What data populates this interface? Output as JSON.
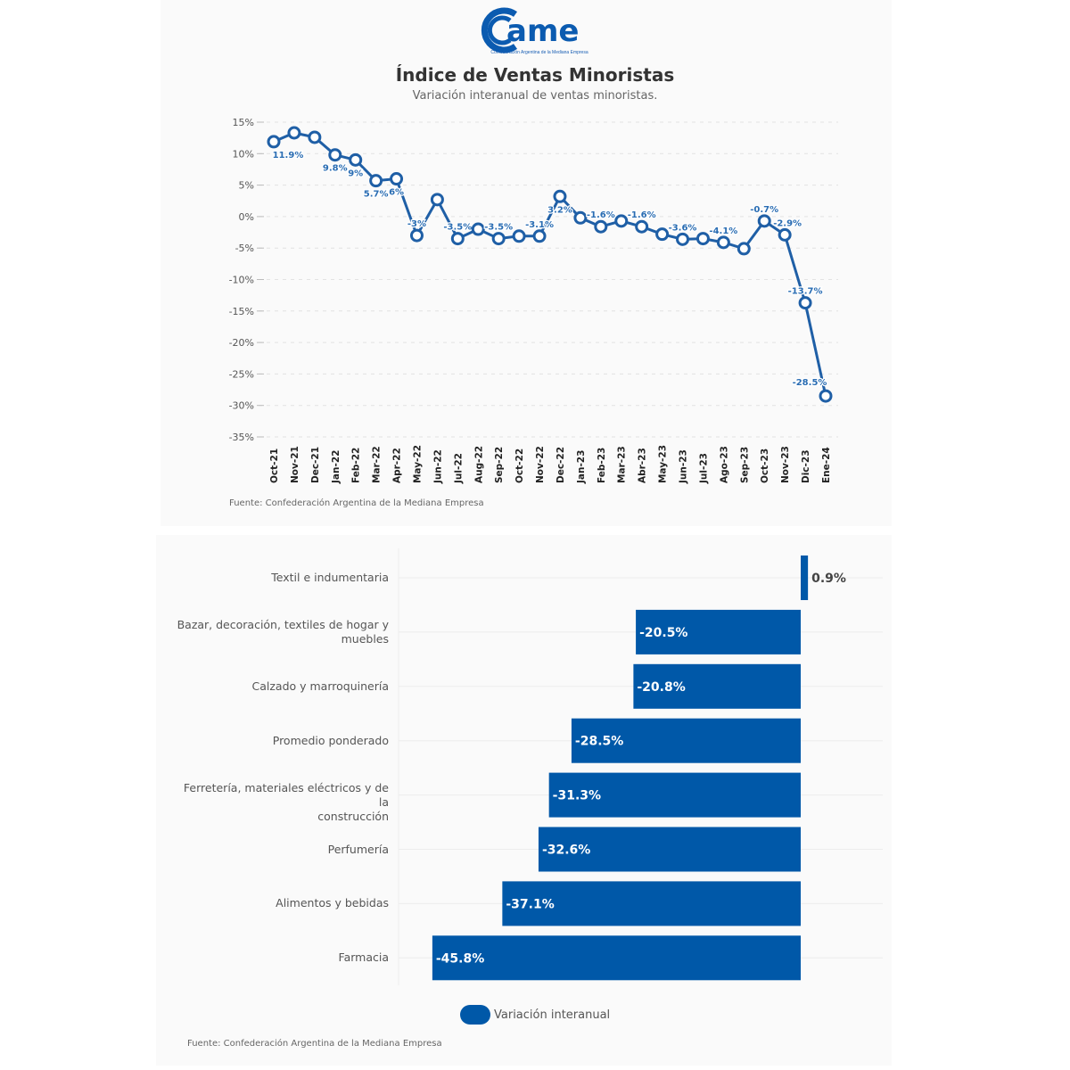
{
  "logo": {
    "name": "came",
    "tagline": "Confederación Argentina de la Mediana Empresa"
  },
  "header": {
    "title": "Índice de Ventas Minoristas",
    "subtitle": "Variación interanual de ventas minoristas."
  },
  "source_top": "Fuente: Confederación Argentina de la Mediana Empresa",
  "source_bottom": "Fuente: Confederación Argentina de la Mediana Empresa",
  "legend": {
    "label": "Variación interanual"
  },
  "colors": {
    "line": "#1f5fa6",
    "bar": "#0058a8",
    "grid": "#dddddd",
    "label_blue": "#2a6db3"
  },
  "chart_data": [
    {
      "type": "line",
      "title": "Índice de Ventas Minoristas",
      "subtitle": "Variación interanual de ventas minoristas.",
      "xlabel": "",
      "ylabel": "",
      "ylim": [
        -35,
        15
      ],
      "yticks": [
        15,
        10,
        5,
        0,
        -5,
        -10,
        -15,
        -20,
        -25,
        -30,
        -35
      ],
      "ytick_labels": [
        "15%",
        "10%",
        "5%",
        "0%",
        "-5%",
        "-10%",
        "-15%",
        "-20%",
        "-25%",
        "-30%",
        "-35%"
      ],
      "grid": true,
      "x": [
        "Oct-21",
        "Nov-21",
        "Dec-21",
        "Jan-22",
        "Feb-22",
        "Mar-22",
        "Apr-22",
        "May-22",
        "Jun-22",
        "Jul-22",
        "Aug-22",
        "Sep-22",
        "Oct-22",
        "Nov-22",
        "Dec-22",
        "Jan-23",
        "Feb-23",
        "Mar-23",
        "Abr-23",
        "May-23",
        "Jun-23",
        "Jul-23",
        "Ago-23",
        "Sep-23",
        "Oct-23",
        "Nov-23",
        "Dic-23",
        "Ene-24"
      ],
      "series": [
        {
          "name": "Variación interanual",
          "values": [
            11.9,
            13.3,
            12.6,
            9.8,
            9,
            5.7,
            6,
            -3,
            2.7,
            -3.5,
            -2.0,
            -3.5,
            -3.1,
            -3.1,
            3.2,
            -0.2,
            -1.6,
            -0.7,
            -1.6,
            -2.8,
            -3.6,
            -3.5,
            -4.1,
            -5.1,
            -0.7,
            -2.9,
            -13.7,
            -28.5
          ],
          "data_labels": [
            "11.9%",
            "",
            "",
            "9.8%",
            "9%",
            "5.7%",
            "6%",
            "-3%",
            "",
            "-3.5%",
            "",
            "-3.5%",
            "",
            "-3.1%",
            "3.2%",
            "",
            "-1.6%",
            "",
            "-1.6%",
            "",
            "-3.6%",
            "",
            "-4.1%",
            "",
            "-0.7%",
            "-2.9%",
            "-13.7%",
            "-28.5%"
          ]
        }
      ]
    },
    {
      "type": "bar",
      "orientation": "horizontal",
      "categories": [
        "Textil e indumentaria",
        "Bazar, decoración, textiles de hogar y muebles",
        "Calzado y marroquinería",
        "Promedio ponderado",
        "Ferretería, materiales eléctricos y de la construcción",
        "Perfumería",
        "Alimentos y bebidas",
        "Farmacia"
      ],
      "category_lines": [
        [
          "Textil e indumentaria"
        ],
        [
          "Bazar, decoración, textiles de hogar y",
          "muebles"
        ],
        [
          "Calzado y marroquinería"
        ],
        [
          "Promedio ponderado"
        ],
        [
          "Ferretería, materiales eléctricos y de la",
          "construcción"
        ],
        [
          "Perfumería"
        ],
        [
          "Alimentos y bebidas"
        ],
        [
          "Farmacia"
        ]
      ],
      "series": [
        {
          "name": "Variación interanual",
          "values": [
            0.9,
            -20.5,
            -20.8,
            -28.5,
            -31.3,
            -32.6,
            -37.1,
            -45.8
          ]
        }
      ],
      "data_labels": [
        "0.9%",
        "-20.5%",
        "-20.8%",
        "-28.5%",
        "-31.3%",
        "-32.6%",
        "-37.1%",
        "-45.8%"
      ],
      "legend": "bottom-center",
      "grid": true
    }
  ]
}
